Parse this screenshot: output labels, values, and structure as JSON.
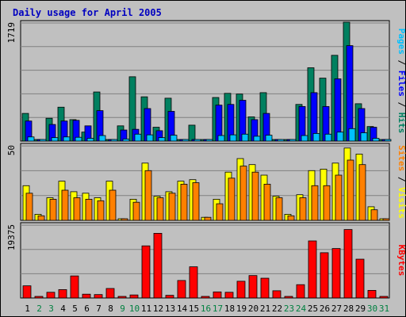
{
  "chart_data": {
    "type": "bar",
    "title": "Daily usage for April 2005",
    "categories": [
      "1",
      "2",
      "3",
      "4",
      "5",
      "6",
      "7",
      "8",
      "9",
      "10",
      "11",
      "12",
      "13",
      "14",
      "15",
      "16",
      "17",
      "18",
      "19",
      "20",
      "21",
      "22",
      "23",
      "24",
      "25",
      "26",
      "27",
      "28",
      "29",
      "30",
      "31"
    ],
    "weekend_days": [
      "2",
      "3",
      "9",
      "10",
      "16",
      "17",
      "23",
      "24",
      "30",
      "31"
    ],
    "weekday_color": "#000000",
    "weekend_color": "#008040",
    "panels": [
      {
        "key": "hits_panel",
        "max_label": "1719",
        "ylim": [
          0,
          1719
        ],
        "side_label": [
          {
            "text": "Pages",
            "color": "#00c0ff"
          },
          {
            "text": " / ",
            "color": "#000000"
          },
          {
            "text": "Files",
            "color": "#0000ff"
          },
          {
            "text": " / ",
            "color": "#000000"
          },
          {
            "text": "Hits",
            "color": "#008060"
          }
        ],
        "series": [
          {
            "name": "Hits",
            "color": "#008060",
            "values": [
              400,
              0,
              330,
              490,
              310,
              130,
              710,
              0,
              220,
              930,
              640,
              200,
              620,
              0,
              230,
              0,
              630,
              690,
              680,
              350,
              700,
              0,
              0,
              530,
              1060,
              910,
              1240,
              1719,
              540,
              210,
              0
            ]
          },
          {
            "name": "Files",
            "color": "#0000ff",
            "values": [
              290,
              0,
              240,
              290,
              300,
              220,
              440,
              0,
              160,
              170,
              470,
              150,
              430,
              0,
              0,
              0,
              520,
              530,
              590,
              310,
              400,
              0,
              0,
              500,
              700,
              500,
              900,
              1380,
              470,
              200,
              0
            ]
          },
          {
            "name": "Pages",
            "color": "#00c0ff",
            "values": [
              60,
              0,
              50,
              60,
              55,
              40,
              80,
              0,
              30,
              100,
              90,
              50,
              85,
              0,
              0,
              0,
              80,
              90,
              100,
              70,
              85,
              0,
              0,
              80,
              110,
              100,
              130,
              180,
              120,
              40,
              0
            ]
          }
        ]
      },
      {
        "key": "visits_panel",
        "max_label": "50",
        "ylim": [
          0,
          50
        ],
        "side_label": [
          {
            "text": "Sites",
            "color": "#ff8000"
          },
          {
            "text": " / ",
            "color": "#000000"
          },
          {
            "text": "Visits",
            "color": "#ffff00"
          }
        ],
        "series": [
          {
            "name": "Visits",
            "color": "#ffff00",
            "values": [
              23,
              4,
              15,
              26,
              19,
              18,
              15,
              26,
              1,
              14,
              38,
              16,
              19,
              26,
              27,
              2,
              14,
              32,
              41,
              37,
              30,
              16,
              4,
              17,
              33,
              34,
              38,
              48,
              44,
              9,
              0
            ]
          },
          {
            "name": "Sites",
            "color": "#ff8000",
            "values": [
              18,
              3,
              14,
              20,
              15,
              14,
              13,
              20,
              1,
              12,
              33,
              15,
              18,
              24,
              25,
              2,
              11,
              28,
              36,
              32,
              24,
              15,
              3,
              15,
              23,
              23,
              30,
              40,
              37,
              7,
              0
            ]
          }
        ]
      },
      {
        "key": "kbytes_panel",
        "max_label": "19375",
        "ylim": [
          0,
          19375
        ],
        "side_label": [
          {
            "text": "KBytes",
            "color": "#ff0000"
          }
        ],
        "series": [
          {
            "name": "KBytes",
            "color": "#ff0000",
            "values": [
              3200,
              0,
              1500,
              2200,
              5800,
              1000,
              900,
              2500,
              0,
              800,
              13700,
              17000,
              700,
              4600,
              8200,
              0,
              1600,
              1500,
              4400,
              5900,
              5200,
              1900,
              0,
              3500,
              15000,
              11900,
              13000,
              18000,
              10200,
              2000,
              0
            ]
          }
        ]
      }
    ]
  }
}
